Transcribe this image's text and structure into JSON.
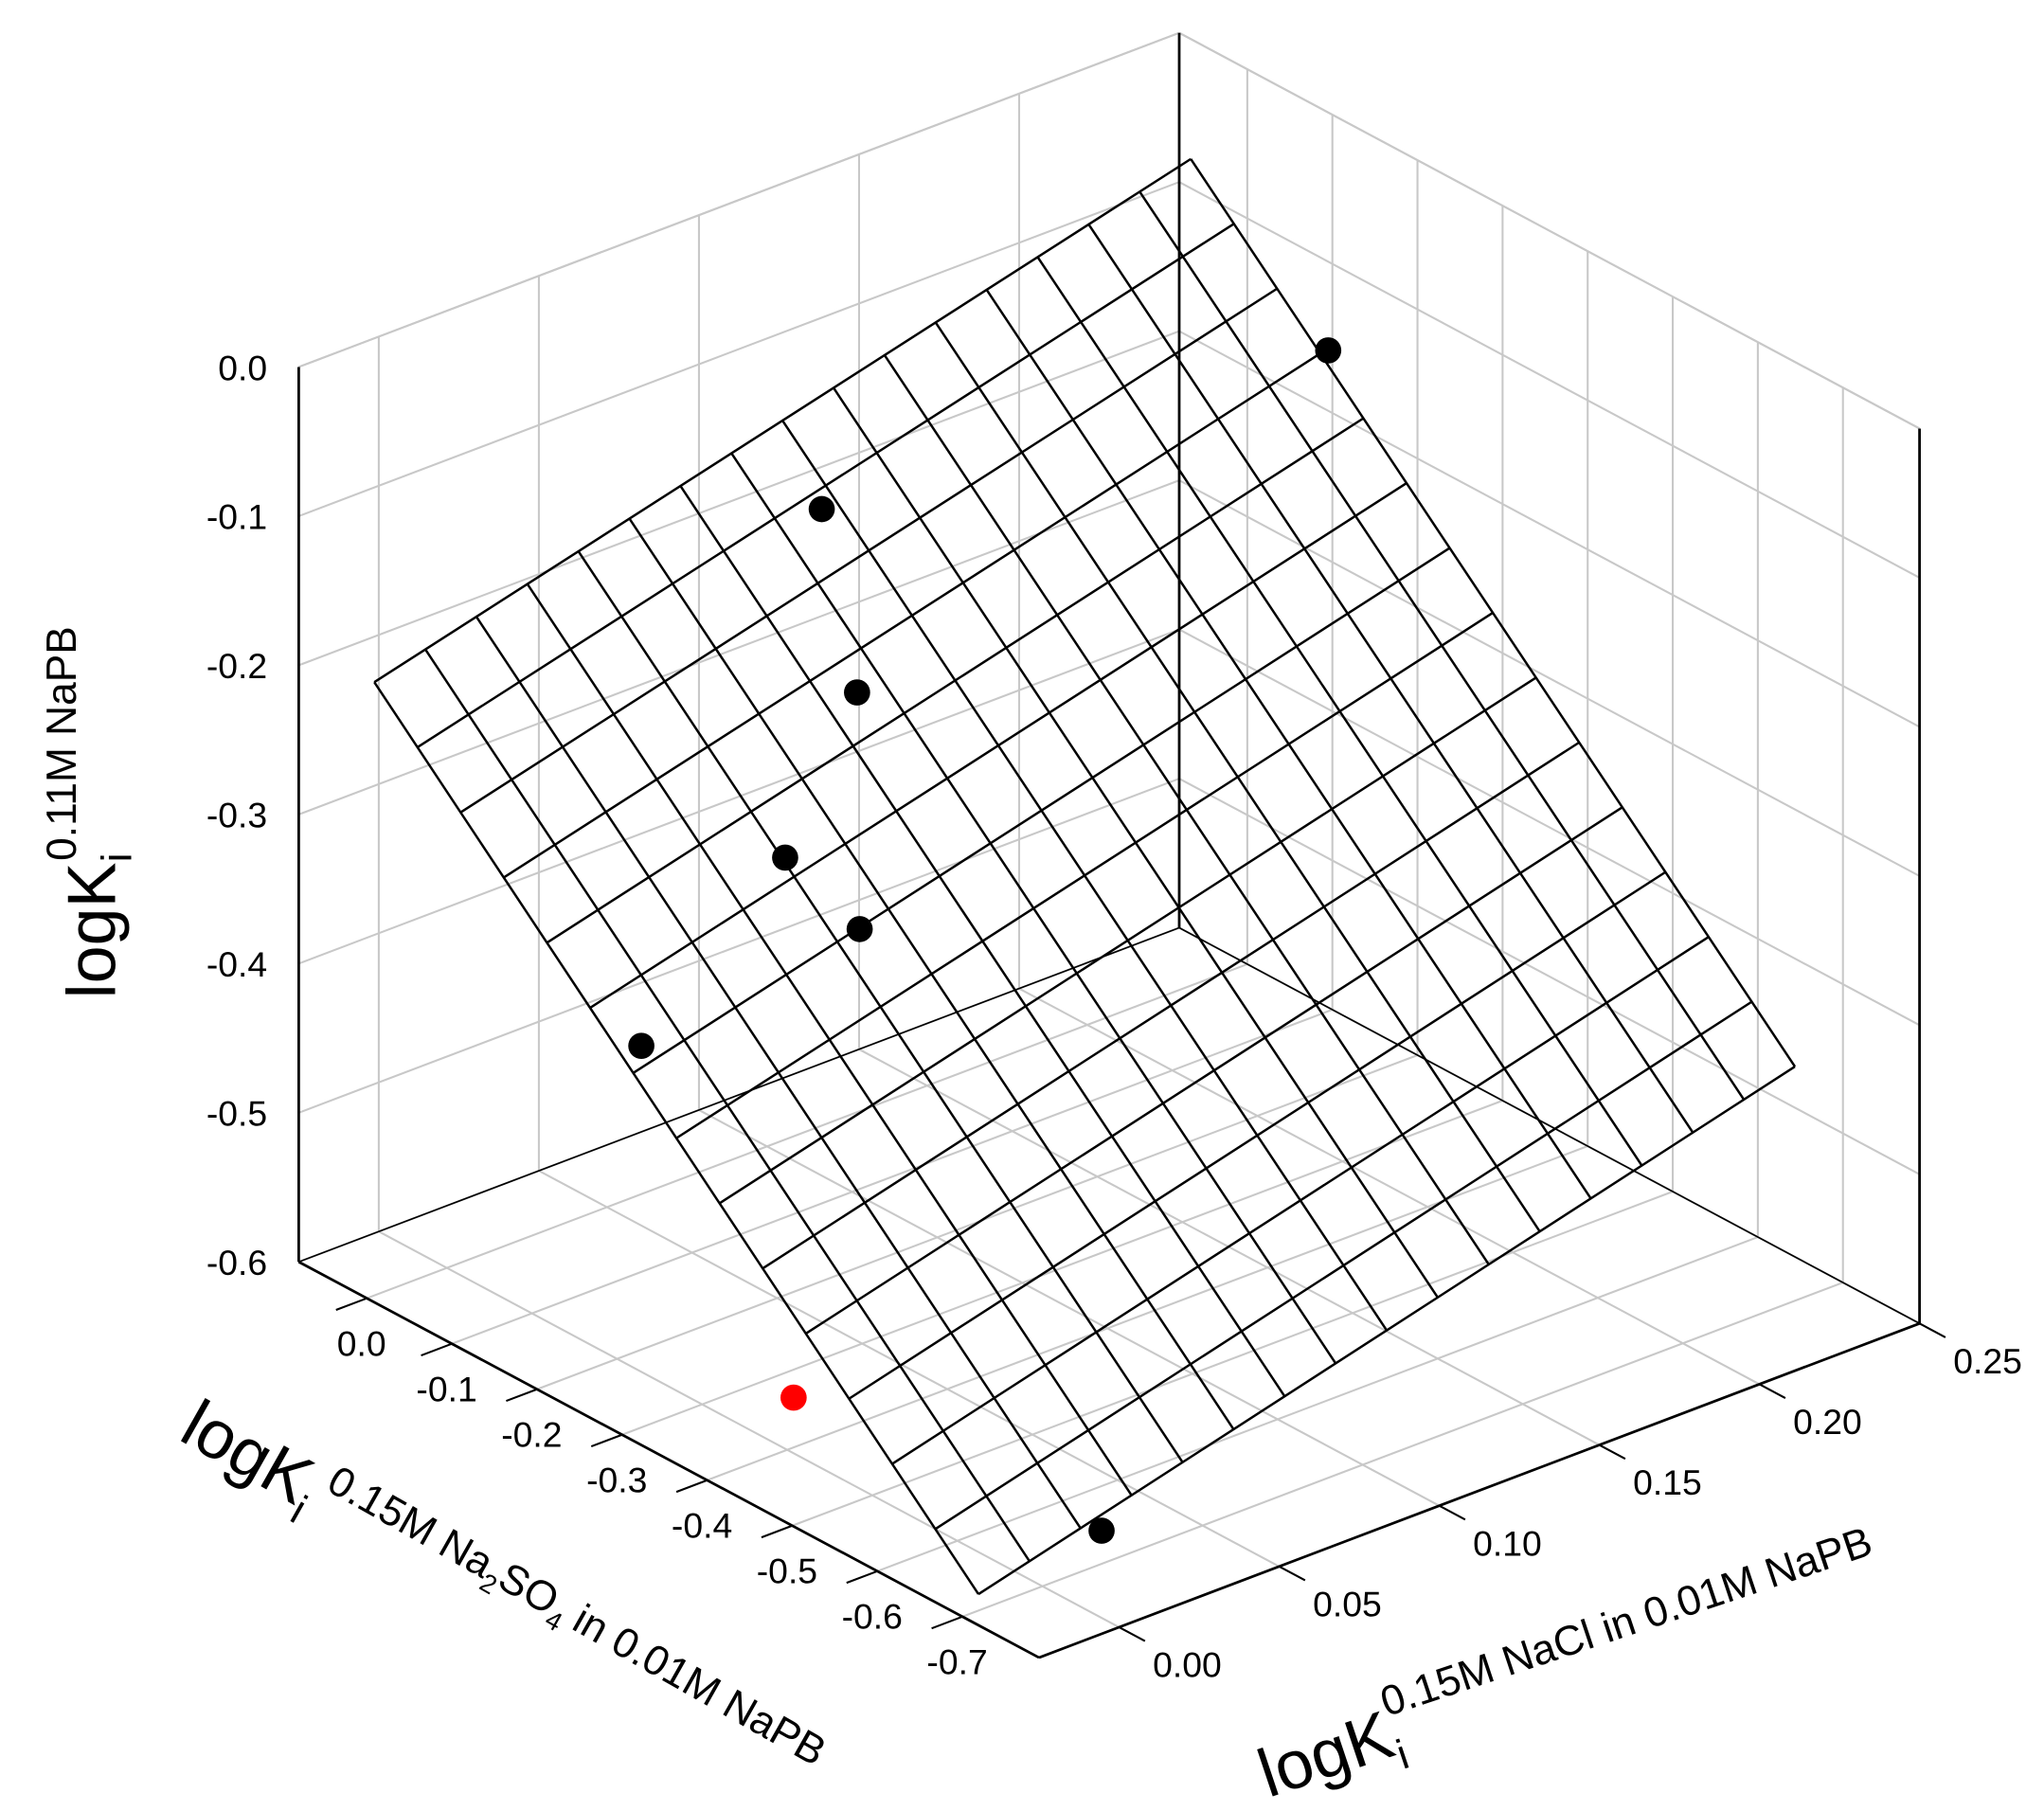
{
  "chart_data": {
    "type": "scatter3d",
    "x_title": {
      "main": "logK",
      "sub": "i",
      "sup": [
        "0.15M Na",
        "2",
        "SO",
        "4",
        "in 0.01M NaPB"
      ]
    },
    "y_title": {
      "main": "logK",
      "sub": "i",
      "sup": "0.15M NaCl in 0.01M NaPB"
    },
    "z_title": {
      "main": "logK",
      "sub": "i",
      "sup": "0.11M NaPB"
    },
    "xlim": [
      0.08,
      -0.79
    ],
    "xticks": [
      {
        "value": 0,
        "label": "0.0"
      },
      -0.1,
      -0.2,
      -0.3,
      -0.4,
      -0.5,
      -0.6,
      -0.7
    ],
    "ylim": [
      -0.025,
      0.25
    ],
    "yticks": [
      {
        "value": 0,
        "label": "0.00"
      },
      0.05,
      {
        "value": 0.1,
        "label": "0.10"
      },
      0.15,
      {
        "value": 0.2,
        "label": "0.20"
      },
      0.25
    ],
    "zlim": [
      -0.6,
      0.0
    ],
    "zticks": [
      {
        "value": 0,
        "label": "0.0"
      },
      -0.1,
      -0.2,
      -0.3,
      -0.4,
      -0.5,
      -0.6
    ],
    "grid": true,
    "series": [
      {
        "color": "#000000",
        "x": [
          -0.144,
          -0.053,
          -0.166,
          -0.232,
          -0.297,
          -0.285,
          -0.713
        ],
        "y": [
          0.237,
          0.103,
          0.084,
          0.044,
          0.05,
          -0.015,
          0.015
        ],
        "z": [
          -0.134,
          -0.159,
          -0.232,
          -0.29,
          -0.323,
          -0.352,
          -0.571
        ]
      },
      {
        "color": "#ff0000",
        "x": [
          -0.336
        ],
        "y": [
          0.019
        ],
        "z": [
          -0.6
        ]
      }
    ],
    "surface": {
      "color": "#000000",
      "xlim": [
        0.01,
        -0.7
      ],
      "ylim": [
        -0.02,
        0.235
      ],
      "zcorners": [
        [
          -0.194,
          -0.051
        ],
        [
          -0.589,
          -0.443
        ]
      ],
      "divisions": [
        14,
        16
      ]
    }
  }
}
